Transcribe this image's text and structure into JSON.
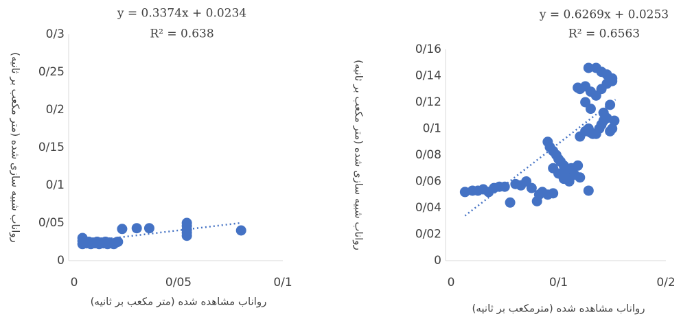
{
  "chart_data": [
    {
      "type": "scatter",
      "equation": "y = 0.3374x + 0.0234",
      "r_squared": "R² = 0.638",
      "x_label": "رواناب مشاهده شده (متر مکعب بر ثانیه)",
      "y_label": "رواناب شبیه سازی شده (متر مکعب بر ثانیه)",
      "xlim": [
        0,
        0.1
      ],
      "xticks": [
        0,
        {
          "value": 0.05,
          "label": "0/05"
        },
        {
          "value": 0.1,
          "label": "0/1"
        }
      ],
      "ylim": [
        0,
        0.3
      ],
      "yticks": [
        0,
        {
          "value": 0.05,
          "label": "0/05"
        },
        {
          "value": 0.1,
          "label": "0/1"
        },
        {
          "value": 0.15,
          "label": "0/15"
        },
        {
          "value": 0.2,
          "label": "0/2"
        },
        {
          "value": 0.25,
          "label": "0/25"
        },
        {
          "value": 0.3,
          "label": "0/3"
        }
      ],
      "series": [
        {
          "color": "#4472c4",
          "x": [
            0.004,
            0.004,
            0.004,
            0.005,
            0.006,
            0.007,
            0.008,
            0.009,
            0.01,
            0.011,
            0.012,
            0.013,
            0.014,
            0.015,
            0.016,
            0.017,
            0.018,
            0.019,
            0.02,
            0.021,
            0.023,
            0.03,
            0.036,
            0.054,
            0.054,
            0.054,
            0.054,
            0.054,
            0.08
          ],
          "y": [
            0.022,
            0.026,
            0.03,
            0.024,
            0.023,
            0.025,
            0.022,
            0.024,
            0.023,
            0.025,
            0.022,
            0.024,
            0.023,
            0.025,
            0.022,
            0.024,
            0.023,
            0.022,
            0.024,
            0.025,
            0.042,
            0.043,
            0.043,
            0.033,
            0.037,
            0.041,
            0.046,
            0.05,
            0.04
          ]
        }
      ],
      "trendline": {
        "color": "#4472c4",
        "x": [
          0.004,
          0.08
        ],
        "y": [
          0.025,
          0.05
        ]
      }
    },
    {
      "type": "scatter",
      "equation": "y = 0.6269x + 0.0253",
      "r_squared": "R² = 0.6563",
      "x_label": "رواناب مشاهده شده (مترمکعب بر ثانیه)",
      "y_label": "رواناب شبیه سازی شده (متر مکعب بر ثانیه)",
      "xlim": [
        0,
        0.2
      ],
      "xticks": [
        0,
        {
          "value": 0.1,
          "label": "0/1"
        },
        {
          "value": 0.2,
          "label": "0/2"
        }
      ],
      "ylim": [
        0,
        0.16
      ],
      "yticks": [
        0,
        {
          "value": 0.02,
          "label": "0/02"
        },
        {
          "value": 0.04,
          "label": "0/04"
        },
        {
          "value": 0.06,
          "label": "0/06"
        },
        {
          "value": 0.08,
          "label": "0/08"
        },
        {
          "value": 0.1,
          "label": "0/1"
        },
        {
          "value": 0.12,
          "label": "0/12"
        },
        {
          "value": 0.14,
          "label": "0/14"
        },
        {
          "value": 0.16,
          "label": "0/16"
        }
      ],
      "series": [
        {
          "color": "#4472c4",
          "x": [
            0.013,
            0.02,
            0.025,
            0.03,
            0.035,
            0.04,
            0.045,
            0.05,
            0.055,
            0.06,
            0.065,
            0.07,
            0.075,
            0.08,
            0.082,
            0.085,
            0.09,
            0.095,
            0.09,
            0.092,
            0.095,
            0.098,
            0.1,
            0.102,
            0.105,
            0.095,
            0.1,
            0.105,
            0.11,
            0.108,
            0.112,
            0.115,
            0.118,
            0.12,
            0.12,
            0.125,
            0.128,
            0.13,
            0.132,
            0.135,
            0.138,
            0.14,
            0.142,
            0.145,
            0.148,
            0.15,
            0.152,
            0.14,
            0.145,
            0.15,
            0.128,
            0.135,
            0.14,
            0.145,
            0.15,
            0.125,
            0.13,
            0.135,
            0.12,
            0.125,
            0.13,
            0.128,
            0.142,
            0.148,
            0.118
          ],
          "y": [
            0.052,
            0.053,
            0.053,
            0.054,
            0.052,
            0.055,
            0.056,
            0.056,
            0.044,
            0.058,
            0.057,
            0.06,
            0.055,
            0.045,
            0.05,
            0.052,
            0.05,
            0.051,
            0.09,
            0.086,
            0.083,
            0.08,
            0.077,
            0.075,
            0.072,
            0.07,
            0.066,
            0.062,
            0.06,
            0.067,
            0.07,
            0.065,
            0.072,
            0.063,
            0.094,
            0.098,
            0.1,
            0.097,
            0.096,
            0.096,
            0.1,
            0.103,
            0.106,
            0.108,
            0.098,
            0.1,
            0.106,
            0.13,
            0.134,
            0.138,
            0.146,
            0.146,
            0.143,
            0.141,
            0.136,
            0.132,
            0.128,
            0.125,
            0.13,
            0.12,
            0.115,
            0.053,
            0.112,
            0.118,
            0.131
          ]
        }
      ],
      "trendline": {
        "color": "#4472c4",
        "x": [
          0.013,
          0.153
        ],
        "y": [
          0.034,
          0.122
        ]
      }
    }
  ]
}
